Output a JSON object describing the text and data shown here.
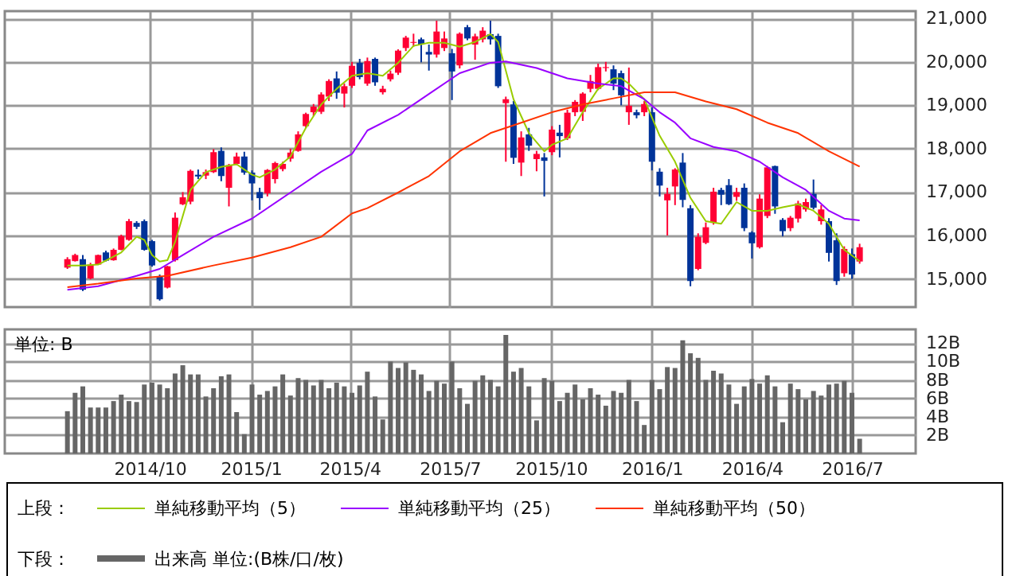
{
  "chart_data": [
    {
      "type": "candlestick",
      "x": [
        "2014-07-18",
        "2014-07-25",
        "2014-08-01",
        "2014-08-08",
        "2014-08-15",
        "2014-08-22",
        "2014-08-29",
        "2014-09-05",
        "2014-09-12",
        "2014-09-19",
        "2014-09-26",
        "2014-10-03",
        "2014-10-10",
        "2014-10-17",
        "2014-10-24",
        "2014-10-31",
        "2014-11-07",
        "2014-11-14",
        "2014-11-21",
        "2014-11-28",
        "2014-12-05",
        "2014-12-12",
        "2014-12-19",
        "2014-12-26",
        "2015-01-02",
        "2015-01-09",
        "2015-01-16",
        "2015-01-23",
        "2015-01-30",
        "2015-02-06",
        "2015-02-13",
        "2015-02-20",
        "2015-02-27",
        "2015-03-06",
        "2015-03-13",
        "2015-03-20",
        "2015-03-27",
        "2015-04-03",
        "2015-04-10",
        "2015-04-17",
        "2015-04-24",
        "2015-05-01",
        "2015-05-08",
        "2015-05-15",
        "2015-05-22",
        "2015-05-29",
        "2015-06-05",
        "2015-06-12",
        "2015-06-19",
        "2015-06-26",
        "2015-07-03",
        "2015-07-10",
        "2015-07-17",
        "2015-07-24",
        "2015-07-31",
        "2015-08-07",
        "2015-08-14",
        "2015-08-21",
        "2015-08-28",
        "2015-09-04",
        "2015-09-11",
        "2015-09-18",
        "2015-09-25",
        "2015-10-02",
        "2015-10-09",
        "2015-10-16",
        "2015-10-23",
        "2015-10-30",
        "2015-11-06",
        "2015-11-13",
        "2015-11-20",
        "2015-11-27",
        "2015-12-04",
        "2015-12-11",
        "2015-12-18",
        "2015-12-25",
        "2016-01-01",
        "2016-01-08",
        "2016-01-15",
        "2016-01-22",
        "2016-01-29",
        "2016-02-05",
        "2016-02-12",
        "2016-02-19",
        "2016-02-26",
        "2016-03-04",
        "2016-03-11",
        "2016-03-18",
        "2016-03-25",
        "2016-04-01",
        "2016-04-08",
        "2016-04-15",
        "2016-04-22",
        "2016-04-29",
        "2016-05-06",
        "2016-05-13",
        "2016-05-20",
        "2016-05-27",
        "2016-06-03",
        "2016-06-10",
        "2016-06-17",
        "2016-06-24",
        "2016-07-01",
        "2016-07-08"
      ],
      "ohlc": [
        [
          15260,
          15500,
          15230,
          15455
        ],
        [
          15410,
          15580,
          15400,
          15550
        ],
        [
          15455,
          15550,
          14720,
          14750
        ],
        [
          15010,
          15370,
          14990,
          15330
        ],
        [
          15330,
          15560,
          15320,
          15550
        ],
        [
          15610,
          15650,
          15400,
          15420
        ],
        [
          15430,
          15700,
          15420,
          15670
        ],
        [
          15670,
          16020,
          15660,
          15990
        ],
        [
          15900,
          16380,
          15880,
          16330
        ],
        [
          16290,
          16330,
          16150,
          16200
        ],
        [
          16330,
          16370,
          15650,
          15670
        ],
        [
          15870,
          15900,
          15280,
          15310
        ],
        [
          15050,
          15100,
          14500,
          14530
        ],
        [
          14800,
          15300,
          14780,
          15290
        ],
        [
          15430,
          16530,
          15400,
          16410
        ],
        [
          16720,
          17000,
          16700,
          16880
        ],
        [
          16780,
          17520,
          16720,
          17490
        ],
        [
          17400,
          17520,
          17300,
          17360
        ],
        [
          17380,
          17520,
          17300,
          17460
        ],
        [
          17460,
          17990,
          17440,
          17920
        ],
        [
          17950,
          18030,
          17250,
          17370
        ],
        [
          17100,
          17650,
          16670,
          17620
        ],
        [
          17650,
          17910,
          17620,
          17820
        ],
        [
          17820,
          17930,
          17400,
          17450
        ],
        [
          17450,
          17500,
          16810,
          17200
        ],
        [
          17000,
          17100,
          16590,
          16860
        ],
        [
          16970,
          17530,
          16900,
          17510
        ],
        [
          17300,
          17700,
          17200,
          17670
        ],
        [
          17530,
          17700,
          17480,
          17650
        ],
        [
          17770,
          18000,
          17700,
          17910
        ],
        [
          17950,
          18400,
          17930,
          18330
        ],
        [
          18520,
          18830,
          18480,
          18800
        ],
        [
          18840,
          19030,
          18750,
          18970
        ],
        [
          18850,
          19300,
          18800,
          19250
        ],
        [
          19200,
          19600,
          19100,
          19560
        ],
        [
          19620,
          19780,
          19150,
          19290
        ],
        [
          19270,
          19500,
          18950,
          19440
        ],
        [
          19450,
          20000,
          19400,
          19910
        ],
        [
          19980,
          20070,
          19600,
          19650
        ],
        [
          19500,
          20100,
          19450,
          20020
        ],
        [
          20070,
          20100,
          19450,
          19530
        ],
        [
          19300,
          19450,
          19250,
          19380
        ],
        [
          19600,
          19800,
          19550,
          19730
        ],
        [
          19750,
          20290,
          19700,
          20260
        ],
        [
          20320,
          20600,
          20250,
          20560
        ],
        [
          20440,
          20650,
          20350,
          20460
        ],
        [
          20520,
          20560,
          19990,
          20400
        ],
        [
          20230,
          20400,
          19800,
          20170
        ],
        [
          20170,
          20950,
          20100,
          20700
        ],
        [
          20320,
          20700,
          20250,
          20540
        ],
        [
          20200,
          20300,
          19120,
          19780
        ],
        [
          19920,
          20680,
          19850,
          20650
        ],
        [
          20800,
          20850,
          20500,
          20540
        ],
        [
          20400,
          20650,
          20050,
          20590
        ],
        [
          20520,
          20800,
          20450,
          20720
        ],
        [
          20640,
          20950,
          20400,
          20520
        ],
        [
          20600,
          20650,
          19400,
          19440
        ],
        [
          19050,
          19200,
          17700,
          19140
        ],
        [
          19020,
          19100,
          17650,
          17790
        ],
        [
          17680,
          18400,
          17370,
          18260
        ],
        [
          18330,
          18480,
          17950,
          18070
        ],
        [
          17760,
          17950,
          17480,
          17880
        ],
        [
          17800,
          17900,
          16900,
          17720
        ],
        [
          17920,
          18520,
          17850,
          18440
        ],
        [
          18370,
          18550,
          17800,
          18290
        ],
        [
          18240,
          18900,
          18200,
          18830
        ],
        [
          18840,
          19120,
          18750,
          19080
        ],
        [
          18850,
          19300,
          18640,
          19270
        ],
        [
          19380,
          19700,
          19300,
          19560
        ],
        [
          19380,
          19960,
          19350,
          19880
        ],
        [
          19860,
          20000,
          19780,
          19880
        ],
        [
          19830,
          19920,
          19350,
          19500
        ],
        [
          19740,
          19800,
          19000,
          19230
        ],
        [
          18840,
          19870,
          18550,
          18990
        ],
        [
          18840,
          18900,
          18700,
          18770
        ],
        [
          18840,
          19100,
          18750,
          19030
        ],
        [
          18840,
          18950,
          17500,
          17700
        ],
        [
          17470,
          17550,
          16900,
          17150
        ],
        [
          16810,
          17100,
          16000,
          16960
        ],
        [
          17130,
          17550,
          16700,
          17520
        ],
        [
          17680,
          17900,
          16650,
          16820
        ],
        [
          16630,
          16700,
          14830,
          14950
        ],
        [
          15230,
          16050,
          15200,
          15970
        ],
        [
          15830,
          16300,
          15800,
          16190
        ],
        [
          16290,
          17100,
          16250,
          17010
        ],
        [
          17050,
          17100,
          16700,
          16940
        ],
        [
          17160,
          17300,
          16700,
          16720
        ],
        [
          16890,
          17100,
          16800,
          17000
        ],
        [
          17100,
          17200,
          16100,
          16170
        ],
        [
          16070,
          16100,
          15470,
          15820
        ],
        [
          15730,
          16950,
          15700,
          16850
        ],
        [
          16450,
          17600,
          16400,
          17570
        ],
        [
          17600,
          17610,
          16500,
          16670
        ],
        [
          16360,
          16400,
          15980,
          16100
        ],
        [
          16170,
          16450,
          16100,
          16410
        ],
        [
          16390,
          16800,
          16300,
          16740
        ],
        [
          16600,
          16850,
          16550,
          16770
        ],
        [
          16960,
          17290,
          16600,
          16640
        ],
        [
          16330,
          16700,
          16250,
          16600
        ],
        [
          16330,
          16400,
          15400,
          15600
        ],
        [
          15890,
          16050,
          14860,
          14950
        ],
        [
          15130,
          15750,
          15050,
          15690
        ],
        [
          15570,
          15700,
          15000,
          15100
        ],
        [
          15400,
          15810,
          15350,
          15730
        ]
      ],
      "colors": [
        "#ff0033",
        "#ff0033",
        "#003399",
        "#ff0033",
        "#ff0033",
        "#003399",
        "#ff0033",
        "#ff0033",
        "#ff0033",
        "#003399",
        "#003399",
        "#003399",
        "#003399",
        "#ff0033",
        "#ff0033",
        "#ff0033",
        "#ff0033",
        "#003399",
        "#ff0033",
        "#ff0033",
        "#003399",
        "#ff0033",
        "#ff0033",
        "#003399",
        "#003399",
        "#003399",
        "#ff0033",
        "#ff0033",
        "#ff0033",
        "#ff0033",
        "#ff0033",
        "#ff0033",
        "#ff0033",
        "#ff0033",
        "#ff0033",
        "#003399",
        "#ff0033",
        "#ff0033",
        "#003399",
        "#ff0033",
        "#003399",
        "#ff0033",
        "#ff0033",
        "#ff0033",
        "#ff0033",
        "#ff0033",
        "#003399",
        "#003399",
        "#ff0033",
        "#ff0033",
        "#003399",
        "#ff0033",
        "#003399",
        "#ff0033",
        "#ff0033",
        "#003399",
        "#003399",
        "#ff0033",
        "#003399",
        "#ff0033",
        "#003399",
        "#ff0033",
        "#003399",
        "#ff0033",
        "#003399",
        "#ff0033",
        "#ff0033",
        "#ff0033",
        "#ff0033",
        "#ff0033",
        "#ff0033",
        "#003399",
        "#003399",
        "#ff0033",
        "#003399",
        "#ff0033",
        "#003399",
        "#003399",
        "#ff0033",
        "#ff0033",
        "#003399",
        "#003399",
        "#ff0033",
        "#ff0033",
        "#ff0033",
        "#003399",
        "#003399",
        "#ff0033",
        "#003399",
        "#003399",
        "#ff0033",
        "#ff0033",
        "#003399",
        "#003399",
        "#ff0033",
        "#ff0033",
        "#ff0033",
        "#003399",
        "#ff0033",
        "#003399",
        "#003399",
        "#ff0033",
        "#003399",
        "#ff0033"
      ],
      "series": [
        {
          "name": "単純移動平均（5）",
          "color": "#99cc00",
          "type": "line",
          "x": [
            "2014-07-18",
            "2014-08-01",
            "2014-08-15",
            "2014-09-05",
            "2014-09-19",
            "2014-09-26",
            "2014-10-03",
            "2014-10-10",
            "2014-10-17",
            "2014-10-24",
            "2014-11-07",
            "2014-11-21",
            "2014-12-05",
            "2014-12-19",
            "2015-01-02",
            "2015-01-09",
            "2015-01-23",
            "2015-02-06",
            "2015-02-20",
            "2015-03-06",
            "2015-03-20",
            "2015-04-03",
            "2015-04-17",
            "2015-05-01",
            "2015-05-15",
            "2015-05-29",
            "2015-06-12",
            "2015-06-26",
            "2015-07-10",
            "2015-07-24",
            "2015-08-07",
            "2015-08-14",
            "2015-08-28",
            "2015-09-11",
            "2015-09-25",
            "2015-10-02",
            "2015-10-16",
            "2015-10-30",
            "2015-11-13",
            "2015-11-27",
            "2015-12-04",
            "2015-12-11",
            "2015-12-25",
            "2016-01-08",
            "2016-01-22",
            "2016-02-05",
            "2016-02-19",
            "2016-03-04",
            "2016-03-18",
            "2016-04-01",
            "2016-04-15",
            "2016-04-29",
            "2016-05-13",
            "2016-05-27",
            "2016-06-10",
            "2016-06-24",
            "2016-07-08"
          ],
          "values": [
            15310,
            15310,
            15330,
            15610,
            15970,
            15900,
            15550,
            15400,
            15430,
            15850,
            17050,
            17460,
            17580,
            17640,
            17400,
            17340,
            17520,
            17820,
            18480,
            19020,
            19380,
            19680,
            19740,
            19680,
            19980,
            20370,
            20440,
            20440,
            20350,
            20460,
            20640,
            20460,
            19140,
            18360,
            17940,
            18090,
            18240,
            18840,
            19380,
            19620,
            19620,
            19500,
            19140,
            18300,
            17700,
            16870,
            16330,
            16270,
            16770,
            16570,
            16570,
            16650,
            16720,
            16570,
            16270,
            15670,
            15410
          ]
        },
        {
          "name": "単純移動平均（25）",
          "color": "#9900ff",
          "type": "line",
          "x": [
            "2014-07-18",
            "2014-08-15",
            "2014-09-19",
            "2014-10-10",
            "2014-10-31",
            "2014-11-28",
            "2015-01-02",
            "2015-02-06",
            "2015-03-06",
            "2015-04-03",
            "2015-04-17",
            "2015-05-15",
            "2015-06-12",
            "2015-07-10",
            "2015-08-07",
            "2015-08-21",
            "2015-09-18",
            "2015-10-16",
            "2015-11-13",
            "2015-12-04",
            "2015-12-25",
            "2016-01-08",
            "2016-01-22",
            "2016-02-05",
            "2016-02-26",
            "2016-03-18",
            "2016-04-08",
            "2016-04-29",
            "2016-05-20",
            "2016-06-10",
            "2016-06-24",
            "2016-07-08"
          ],
          "values": [
            14750,
            14830,
            15070,
            15230,
            15550,
            15970,
            16390,
            16990,
            17470,
            17880,
            18420,
            18780,
            19260,
            19740,
            19980,
            20010,
            19860,
            19620,
            19500,
            19440,
            19140,
            18840,
            18600,
            18240,
            18040,
            17940,
            17700,
            17340,
            17050,
            16570,
            16390,
            16350
          ]
        },
        {
          "name": "単純移動平均（50）",
          "color": "#ff3300",
          "type": "line",
          "x": [
            "2014-07-18",
            "2014-08-15",
            "2014-09-19",
            "2014-10-17",
            "2014-11-28",
            "2015-01-02",
            "2015-02-06",
            "2015-03-06",
            "2015-04-03",
            "2015-04-17",
            "2015-05-15",
            "2015-06-12",
            "2015-07-10",
            "2015-08-07",
            "2015-09-04",
            "2015-10-02",
            "2015-10-30",
            "2015-11-27",
            "2015-12-25",
            "2016-01-22",
            "2016-02-19",
            "2016-03-18",
            "2016-04-15",
            "2016-05-13",
            "2016-06-10",
            "2016-07-08"
          ],
          "values": [
            14810,
            14890,
            15010,
            15070,
            15310,
            15490,
            15730,
            15970,
            16510,
            16630,
            16990,
            17370,
            17940,
            18360,
            18600,
            18840,
            19020,
            19160,
            19300,
            19300,
            19090,
            18910,
            18600,
            18360,
            17940,
            17590
          ]
        }
      ],
      "xlim": [
        "2014-05-22",
        "2016-08-28"
      ],
      "xticks": [
        {
          "value": "2014-10-01",
          "label": null
        },
        {
          "value": "2015-01-01",
          "label": null
        },
        {
          "value": "2015-04-01",
          "label": null
        },
        {
          "value": "2015-07-01",
          "label": null
        },
        {
          "value": "2015-10-01",
          "label": null
        },
        {
          "value": "2016-01-01",
          "label": null
        },
        {
          "value": "2016-04-01",
          "label": null
        },
        {
          "value": "2016-07-01",
          "label": null
        }
      ],
      "ylim": [
        14350,
        21170
      ],
      "yticks": [
        {
          "value": 15000,
          "label": "15,000"
        },
        {
          "value": 16000,
          "label": "16,000"
        },
        {
          "value": 17000,
          "label": "17,000"
        },
        {
          "value": 18000,
          "label": "18,000"
        },
        {
          "value": 19000,
          "label": "19,000"
        },
        {
          "value": 20000,
          "label": "20,000"
        },
        {
          "value": 21000,
          "label": "21,000"
        }
      ],
      "grid": true,
      "legend": "bottom",
      "legend_title": "上段：",
      "tick_labels": "y"
    },
    {
      "type": "bar",
      "x": [
        "2014-07-18",
        "2014-07-25",
        "2014-08-01",
        "2014-08-08",
        "2014-08-15",
        "2014-08-22",
        "2014-08-29",
        "2014-09-05",
        "2014-09-12",
        "2014-09-19",
        "2014-09-26",
        "2014-10-03",
        "2014-10-10",
        "2014-10-17",
        "2014-10-24",
        "2014-10-31",
        "2014-11-07",
        "2014-11-14",
        "2014-11-21",
        "2014-11-28",
        "2014-12-05",
        "2014-12-12",
        "2014-12-19",
        "2014-12-26",
        "2015-01-02",
        "2015-01-09",
        "2015-01-16",
        "2015-01-23",
        "2015-01-30",
        "2015-02-06",
        "2015-02-13",
        "2015-02-20",
        "2015-02-27",
        "2015-03-06",
        "2015-03-13",
        "2015-03-20",
        "2015-03-27",
        "2015-04-03",
        "2015-04-10",
        "2015-04-17",
        "2015-04-24",
        "2015-05-01",
        "2015-05-08",
        "2015-05-15",
        "2015-05-22",
        "2015-05-29",
        "2015-06-05",
        "2015-06-12",
        "2015-06-19",
        "2015-06-26",
        "2015-07-03",
        "2015-07-10",
        "2015-07-17",
        "2015-07-24",
        "2015-07-31",
        "2015-08-07",
        "2015-08-14",
        "2015-08-21",
        "2015-08-28",
        "2015-09-04",
        "2015-09-11",
        "2015-09-18",
        "2015-09-25",
        "2015-10-02",
        "2015-10-09",
        "2015-10-16",
        "2015-10-23",
        "2015-10-30",
        "2015-11-06",
        "2015-11-13",
        "2015-11-20",
        "2015-11-27",
        "2015-12-04",
        "2015-12-11",
        "2015-12-18",
        "2015-12-25",
        "2016-01-01",
        "2016-01-08",
        "2016-01-15",
        "2016-01-22",
        "2016-01-29",
        "2016-02-05",
        "2016-02-12",
        "2016-02-19",
        "2016-02-26",
        "2016-03-04",
        "2016-03-11",
        "2016-03-18",
        "2016-03-25",
        "2016-04-01",
        "2016-04-08",
        "2016-04-15",
        "2016-04-22",
        "2016-04-29",
        "2016-05-06",
        "2016-05-13",
        "2016-05-20",
        "2016-05-27",
        "2016-06-03",
        "2016-06-10",
        "2016-06-17",
        "2016-06-24",
        "2016-07-01",
        "2016-07-08"
      ],
      "series": [
        {
          "name": "出来高 単位:(B株/口/枚)",
          "color": "#666666",
          "values": [
            4.6,
            6.6,
            7.3,
            5.0,
            5.0,
            5.0,
            5.7,
            6.4,
            5.7,
            5.6,
            7.5,
            7.7,
            7.5,
            7.1,
            8.7,
            9.6,
            8.6,
            8.6,
            6.2,
            7.1,
            8.4,
            8.6,
            4.5,
            2.1,
            7.5,
            6.4,
            6.8,
            7.3,
            8.6,
            6.3,
            8.2,
            8.0,
            7.4,
            8.0,
            7.1,
            7.7,
            7.3,
            6.6,
            7.4,
            8.9,
            6.2,
            3.7,
            10.0,
            9.3,
            9.9,
            9.1,
            8.6,
            6.8,
            7.9,
            7.6,
            10.0,
            7.1,
            5.4,
            7.9,
            8.5,
            8.0,
            7.3,
            12.9,
            8.9,
            9.3,
            7.3,
            3.6,
            8.2,
            7.9,
            5.7,
            6.6,
            7.5,
            5.9,
            7.1,
            6.4,
            5.2,
            6.8,
            6.6,
            8.0,
            5.7,
            3.1,
            8.0,
            7.0,
            9.4,
            9.3,
            12.3,
            10.9,
            10.4,
            8.0,
            9.0,
            8.7,
            7.5,
            5.4,
            7.3,
            8.1,
            7.6,
            8.5,
            7.3,
            3.4,
            7.6,
            7.0,
            5.9,
            6.8,
            6.3,
            7.5,
            7.6,
            7.9,
            6.6,
            1.6
          ]
        }
      ],
      "xlim": [
        "2014-05-22",
        "2016-08-28"
      ],
      "xticks": [
        {
          "value": "2014-10-01",
          "label": "2014/10"
        },
        {
          "value": "2015-01-01",
          "label": "2015/1"
        },
        {
          "value": "2015-04-01",
          "label": "2015/4"
        },
        {
          "value": "2015-07-01",
          "label": "2015/7"
        },
        {
          "value": "2015-10-01",
          "label": "2015/10"
        },
        {
          "value": "2016-01-01",
          "label": "2016/1"
        },
        {
          "value": "2016-04-01",
          "label": "2016/4"
        },
        {
          "value": "2016-07-01",
          "label": "2016/7"
        }
      ],
      "ylim": [
        0,
        13.5
      ],
      "yticks": [
        {
          "value": 2,
          "label": "2B"
        },
        {
          "value": 4,
          "label": "4B"
        },
        {
          "value": 6,
          "label": "6B"
        },
        {
          "value": 8,
          "label": "8B"
        },
        {
          "value": 10,
          "label": "10B"
        },
        {
          "value": 12,
          "label": "12B"
        }
      ],
      "grid": true,
      "legend": "bottom",
      "legend_title": "下段：",
      "annotations": [
        "単位: B"
      ]
    }
  ]
}
